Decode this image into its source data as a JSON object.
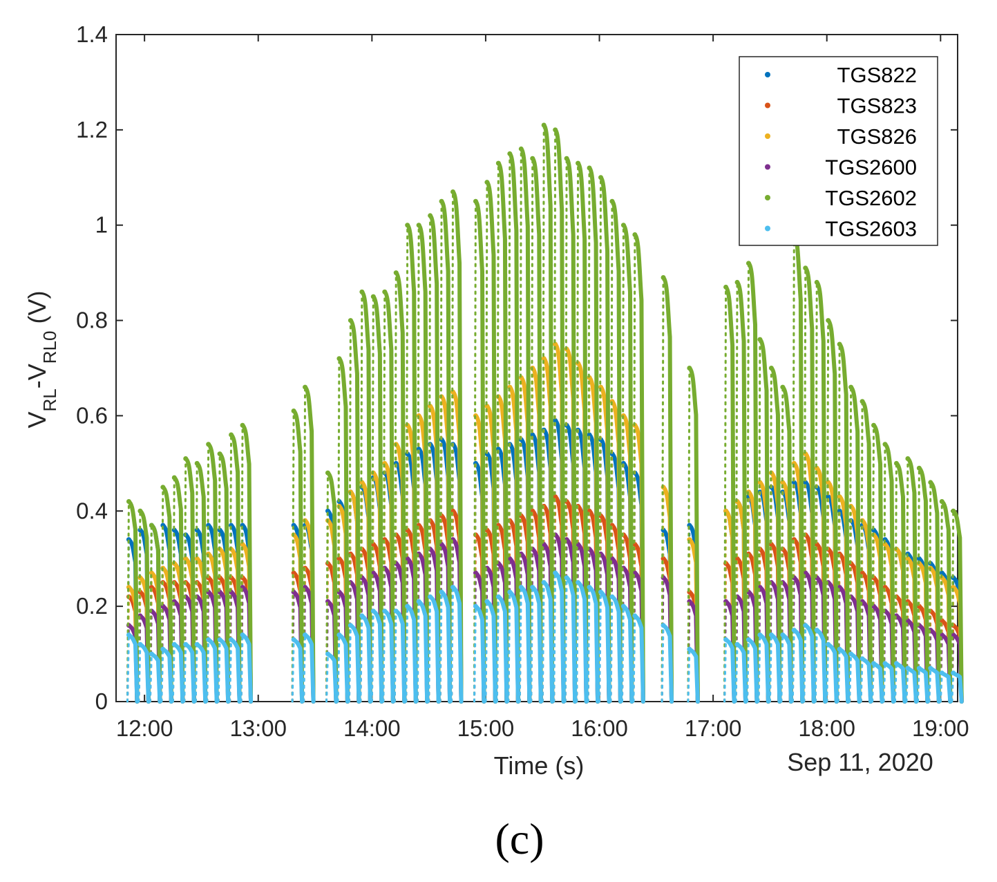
{
  "chart_data": {
    "type": "scatter",
    "title": "",
    "xlabel": "Time (s)",
    "ylabel_main": "V",
    "ylabel_sub1": "RL",
    "ylabel_dash": "-V",
    "ylabel_sub2": "RL0",
    "ylabel_unit": " (V)",
    "date_label": "Sep 11, 2020",
    "caption": "(c)",
    "xlim_hours": [
      11.75,
      19.15
    ],
    "ylim": [
      0,
      1.4
    ],
    "y_ticks": [
      0,
      0.2,
      0.4,
      0.6,
      0.8,
      1,
      1.2,
      1.4
    ],
    "y_tick_labels": [
      "0",
      "0.2",
      "0.4",
      "0.6",
      "0.8",
      "1",
      "1.2",
      "1.4"
    ],
    "x_ticks_hours": [
      12,
      13,
      14,
      15,
      16,
      17,
      18,
      19
    ],
    "x_tick_labels": [
      "12:00",
      "13:00",
      "14:00",
      "15:00",
      "16:00",
      "17:00",
      "18:00",
      "19:00"
    ],
    "legend_position": "top-right",
    "pulse_times_hours": [
      11.85,
      11.95,
      12.05,
      12.15,
      12.25,
      12.35,
      12.45,
      12.55,
      12.65,
      12.75,
      12.85,
      13.3,
      13.4,
      13.6,
      13.7,
      13.8,
      13.9,
      14.0,
      14.1,
      14.2,
      14.3,
      14.4,
      14.5,
      14.6,
      14.7,
      14.9,
      15.0,
      15.1,
      15.2,
      15.3,
      15.4,
      15.5,
      15.6,
      15.7,
      15.8,
      15.9,
      16.0,
      16.1,
      16.2,
      16.3,
      16.55,
      16.78,
      17.1,
      17.2,
      17.3,
      17.4,
      17.5,
      17.6,
      17.7,
      17.8,
      17.9,
      18.0,
      18.1,
      18.2,
      18.3,
      18.4,
      18.5,
      18.6,
      18.7,
      18.8,
      18.9,
      19.0,
      19.1
    ],
    "series": [
      {
        "name": "TGS822",
        "color": "#0072BD",
        "peaks": [
          0.34,
          0.36,
          0.37,
          0.37,
          0.36,
          0.35,
          0.36,
          0.37,
          0.36,
          0.37,
          0.37,
          0.37,
          0.37,
          0.4,
          0.42,
          0.44,
          0.45,
          0.47,
          0.48,
          0.5,
          0.52,
          0.53,
          0.54,
          0.55,
          0.54,
          0.5,
          0.52,
          0.53,
          0.54,
          0.55,
          0.56,
          0.57,
          0.59,
          0.58,
          0.57,
          0.56,
          0.55,
          0.52,
          0.5,
          0.48,
          0.36,
          0.37,
          0.4,
          0.42,
          0.43,
          0.44,
          0.45,
          0.44,
          0.46,
          0.46,
          0.45,
          0.43,
          0.4,
          0.38,
          0.37,
          0.36,
          0.34,
          0.32,
          0.31,
          0.3,
          0.29,
          0.27,
          0.26
        ]
      },
      {
        "name": "TGS823",
        "color": "#D95319",
        "peaks": [
          0.22,
          0.23,
          0.24,
          0.25,
          0.25,
          0.25,
          0.25,
          0.26,
          0.26,
          0.26,
          0.26,
          0.27,
          0.28,
          0.29,
          0.3,
          0.31,
          0.32,
          0.33,
          0.34,
          0.35,
          0.36,
          0.37,
          0.38,
          0.39,
          0.4,
          0.35,
          0.36,
          0.37,
          0.38,
          0.39,
          0.4,
          0.41,
          0.43,
          0.42,
          0.41,
          0.4,
          0.39,
          0.37,
          0.35,
          0.33,
          0.3,
          0.23,
          0.29,
          0.3,
          0.31,
          0.32,
          0.33,
          0.32,
          0.34,
          0.35,
          0.33,
          0.32,
          0.31,
          0.29,
          0.27,
          0.26,
          0.24,
          0.22,
          0.21,
          0.2,
          0.19,
          0.17,
          0.16
        ]
      },
      {
        "name": "TGS826",
        "color": "#EDB120",
        "peaks": [
          0.24,
          0.26,
          0.27,
          0.28,
          0.29,
          0.3,
          0.3,
          0.31,
          0.32,
          0.32,
          0.33,
          0.35,
          0.38,
          0.38,
          0.41,
          0.44,
          0.46,
          0.48,
          0.5,
          0.54,
          0.58,
          0.6,
          0.62,
          0.64,
          0.65,
          0.6,
          0.62,
          0.64,
          0.66,
          0.68,
          0.7,
          0.72,
          0.75,
          0.74,
          0.71,
          0.68,
          0.66,
          0.63,
          0.6,
          0.58,
          0.45,
          0.34,
          0.4,
          0.42,
          0.44,
          0.46,
          0.48,
          0.46,
          0.5,
          0.52,
          0.49,
          0.46,
          0.43,
          0.41,
          0.38,
          0.35,
          0.33,
          0.32,
          0.3,
          0.29,
          0.28,
          0.26,
          0.24
        ]
      },
      {
        "name": "TGS2600",
        "color": "#7E2F8E",
        "peaks": [
          0.16,
          0.18,
          0.19,
          0.2,
          0.21,
          0.22,
          0.22,
          0.23,
          0.23,
          0.23,
          0.24,
          0.23,
          0.24,
          0.21,
          0.23,
          0.25,
          0.26,
          0.27,
          0.28,
          0.29,
          0.3,
          0.31,
          0.32,
          0.33,
          0.34,
          0.27,
          0.28,
          0.29,
          0.3,
          0.31,
          0.32,
          0.33,
          0.35,
          0.34,
          0.33,
          0.32,
          0.31,
          0.3,
          0.28,
          0.27,
          0.26,
          0.21,
          0.21,
          0.22,
          0.23,
          0.24,
          0.25,
          0.25,
          0.26,
          0.27,
          0.26,
          0.25,
          0.24,
          0.22,
          0.21,
          0.2,
          0.19,
          0.18,
          0.17,
          0.16,
          0.15,
          0.14,
          0.14
        ]
      },
      {
        "name": "TGS2602",
        "color": "#77AC30",
        "peaks": [
          0.42,
          0.4,
          0.37,
          0.45,
          0.47,
          0.51,
          0.5,
          0.54,
          0.52,
          0.56,
          0.58,
          0.61,
          0.66,
          0.48,
          0.72,
          0.8,
          0.86,
          0.85,
          0.86,
          0.9,
          1.0,
          1.0,
          1.02,
          1.05,
          1.07,
          1.05,
          1.09,
          1.13,
          1.15,
          1.16,
          1.14,
          1.21,
          1.2,
          1.14,
          1.13,
          1.12,
          1.1,
          1.05,
          1.0,
          0.98,
          0.89,
          0.7,
          0.87,
          0.88,
          0.92,
          0.76,
          0.7,
          0.66,
          0.98,
          0.91,
          0.88,
          0.8,
          0.75,
          0.66,
          0.63,
          0.58,
          0.54,
          0.5,
          0.51,
          0.49,
          0.46,
          0.42,
          0.4
        ]
      },
      {
        "name": "TGS2603",
        "color": "#4DBEEE",
        "peaks": [
          0.14,
          0.12,
          0.1,
          0.11,
          0.12,
          0.12,
          0.12,
          0.13,
          0.13,
          0.13,
          0.14,
          0.13,
          0.14,
          0.1,
          0.14,
          0.16,
          0.18,
          0.19,
          0.19,
          0.19,
          0.2,
          0.21,
          0.22,
          0.23,
          0.24,
          0.2,
          0.21,
          0.22,
          0.23,
          0.24,
          0.24,
          0.25,
          0.27,
          0.26,
          0.25,
          0.24,
          0.23,
          0.22,
          0.2,
          0.18,
          0.16,
          0.11,
          0.13,
          0.12,
          0.13,
          0.14,
          0.14,
          0.14,
          0.15,
          0.16,
          0.15,
          0.12,
          0.11,
          0.1,
          0.09,
          0.08,
          0.08,
          0.08,
          0.07,
          0.07,
          0.07,
          0.06,
          0.06
        ]
      }
    ]
  }
}
